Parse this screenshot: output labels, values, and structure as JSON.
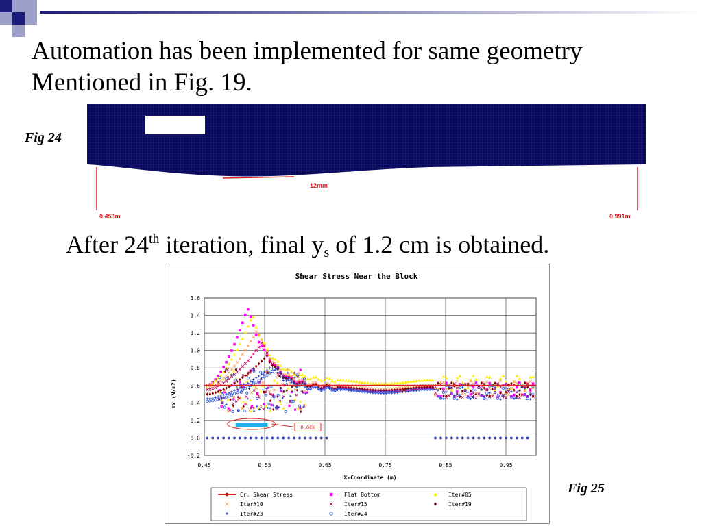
{
  "slide": {
    "title_line1": "Automation has been implemented for same geometry",
    "title_line2": "Mentioned in Fig. 19.",
    "fig24_label": "Fig 24",
    "fig25_label": "Fig 25",
    "subtitle_prefix": "After 24",
    "subtitle_sup": "th",
    "subtitle_mid": " iteration, final y",
    "subtitle_sub": "s",
    "subtitle_suffix": " of 1.2 cm is obtained."
  },
  "fig24": {
    "dim_label": "12mm",
    "left_label": "0.453m",
    "right_label": "0.991m",
    "mesh_color": "#0a0a5a"
  },
  "colors": {
    "deco_dark": "#1c1c7a",
    "deco_light": "#9ea0cc",
    "annotation_red": "#e02020"
  },
  "chart_data": {
    "type": "scatter",
    "title": "Shear Stress Near the Block",
    "xlabel": "X-Coordinate (m)",
    "ylabel": "τx (N/m2)",
    "xlim": [
      0.45,
      1.0
    ],
    "ylim": [
      -0.2,
      1.6
    ],
    "x_ticks": [
      "0.45",
      "0.55",
      "0.65",
      "0.75",
      "0.85",
      "0.95"
    ],
    "y_ticks": [
      "1.6",
      "1.4",
      "1.2",
      "1.0",
      "0.8",
      "0.6",
      "0.4",
      "0.2",
      "0.0",
      "-0.2"
    ],
    "grid": true,
    "annotation": "BLOCK",
    "series": [
      {
        "name": "Cr. Shear Stress",
        "color": "#e02020",
        "marker": "line",
        "peak": 0.6,
        "x": [
          0.45,
          1.0
        ],
        "y": [
          0.6,
          0.6
        ]
      },
      {
        "name": "Flat Bottom",
        "color": "#ff00ff",
        "marker": "square",
        "peak": 1.49,
        "base": 0.6,
        "tail": 0.58
      },
      {
        "name": "Iter#05",
        "color": "#ffee00",
        "marker": "triangle",
        "peak": 1.4,
        "base": 0.6,
        "tail": 0.66
      },
      {
        "name": "Iter#10",
        "color": "#f0a060",
        "marker": "x",
        "peak": 1.24,
        "base": 0.57,
        "tail": 0.6
      },
      {
        "name": "Iter#15",
        "color": "#c00060",
        "marker": "x",
        "peak": 1.09,
        "base": 0.55,
        "tail": 0.57
      },
      {
        "name": "Iter#19",
        "color": "#880000",
        "marker": "diamond",
        "peak": 0.94,
        "base": 0.5,
        "tail": 0.58
      },
      {
        "name": "Iter#23",
        "color": "#2040c0",
        "marker": "plus",
        "peak": 0.82,
        "base": 0.45,
        "tail": 0.55
      },
      {
        "name": "Iter#24",
        "color": "#2050e0",
        "marker": "circle",
        "peak": 0.8,
        "base": 0.42,
        "tail": 0.56
      }
    ]
  }
}
